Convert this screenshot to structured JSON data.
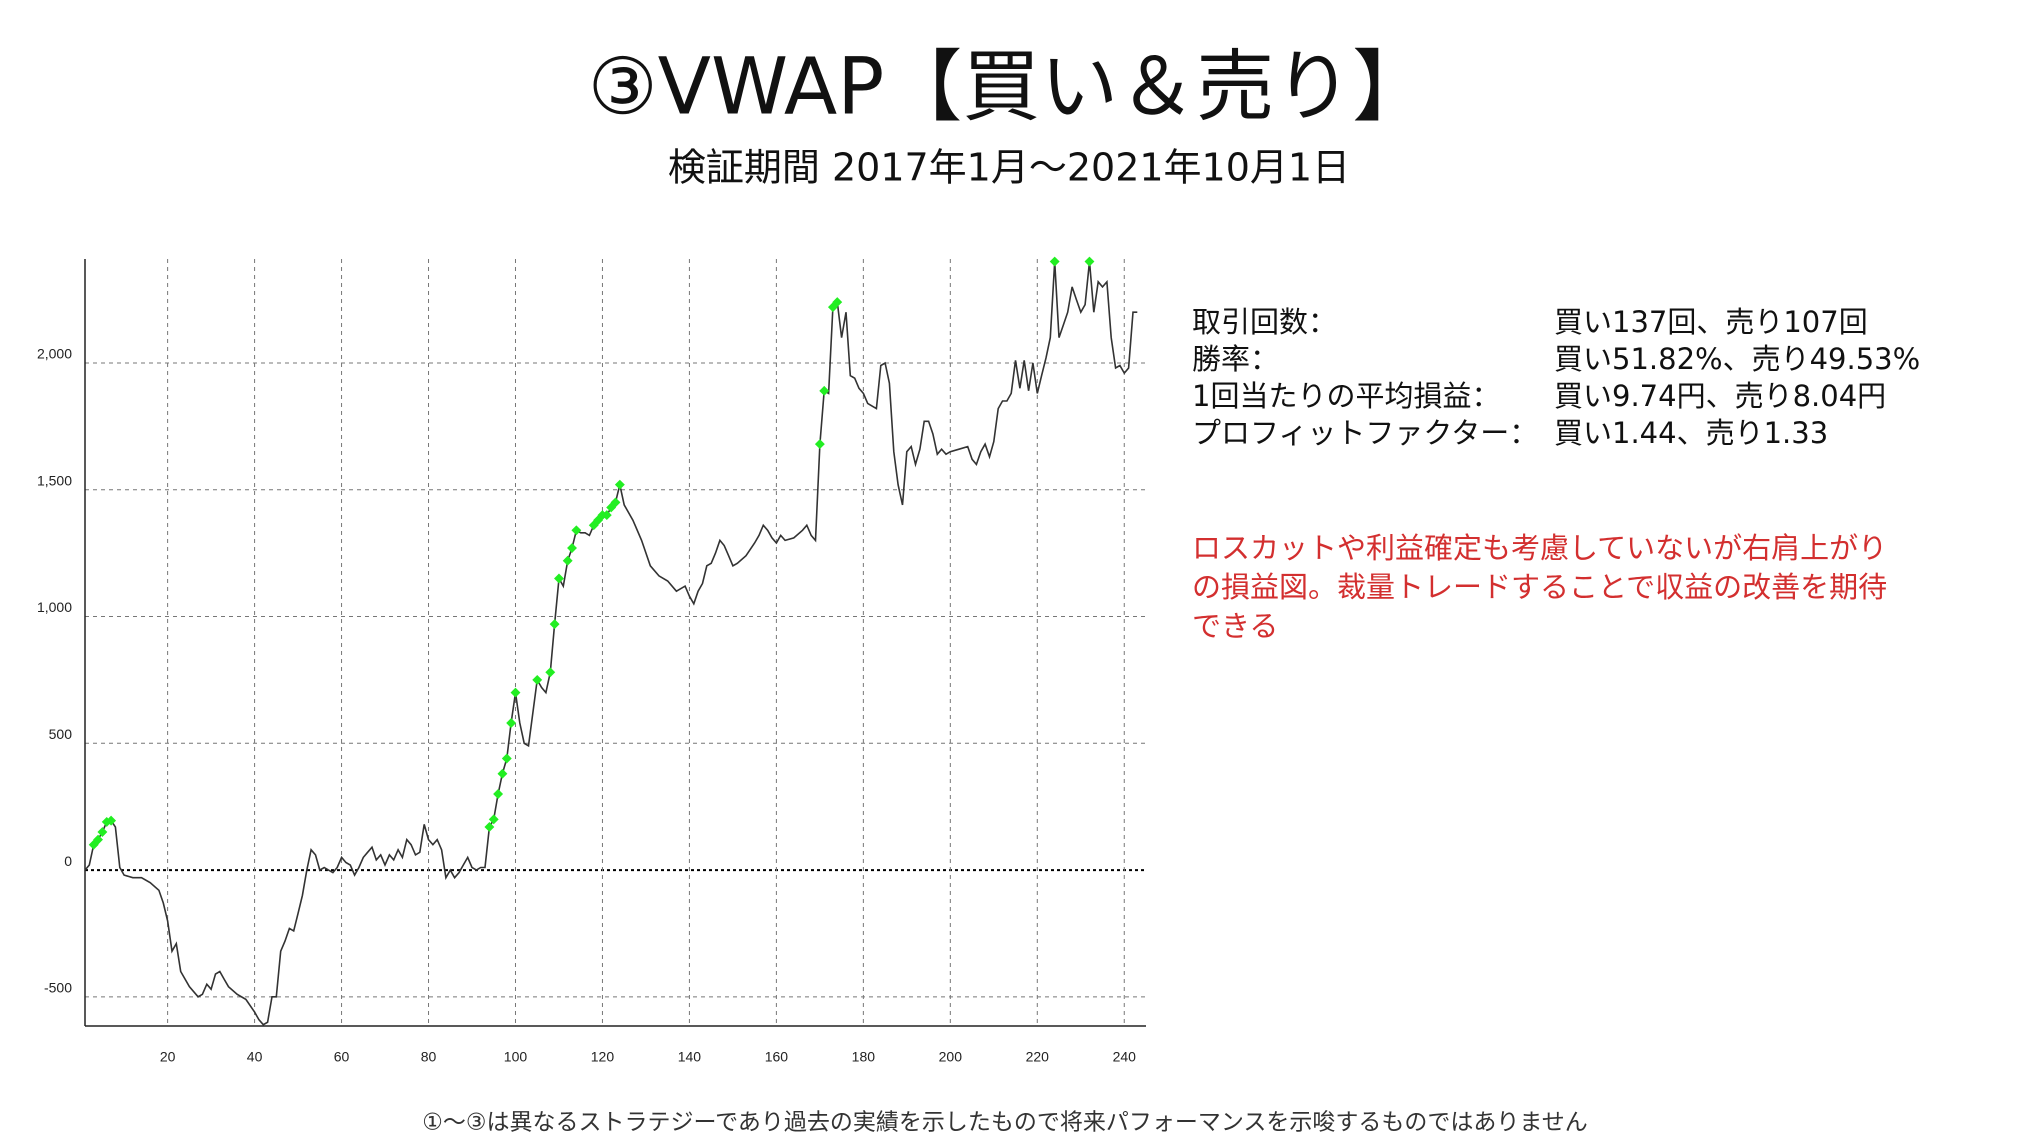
{
  "title": "③VWAP【買い＆売り】",
  "subtitle": "検証期間 2017年1月～2021年10月1日",
  "stats": [
    [
      "取引回数：",
      "買い137回、売り107回"
    ],
    [
      "勝率：",
      "買い51.82%、売り49.53%"
    ],
    [
      "1回当たりの平均損益：",
      "買い9.74円、売り8.04円"
    ],
    [
      "プロフィットファクター：",
      "買い1.44、売り1.33"
    ]
  ],
  "note": [
    "ロスカットや利益確定も考慮していないが右肩上がり",
    "の損益図。裁量トレードすることで収益の改善を期待",
    "できる"
  ],
  "footer": "①～③は異なるストラテジーであり過去の実績を示したもので将来パフォーマンスを示唆するものではありません",
  "chart_data": {
    "type": "line",
    "xlim": [
      1,
      245
    ],
    "ylim": [
      -615,
      2410
    ],
    "xticks": [
      20,
      40,
      60,
      80,
      100,
      120,
      140,
      160,
      180,
      200,
      220,
      240
    ],
    "yticks": [
      -500,
      0,
      500,
      {
        "value": 1000,
        "label": "1,000"
      },
      {
        "value": 1500,
        "label": "1,500"
      },
      {
        "value": 2000,
        "label": "2,000"
      }
    ],
    "grid": true,
    "series": [
      {
        "color": "#333333",
        "markers": false,
        "x": [
          1,
          2,
          3,
          4,
          5,
          6,
          7,
          8,
          9,
          10,
          12,
          14,
          16,
          18,
          19,
          20,
          21,
          22,
          23,
          25,
          27,
          28,
          29,
          30,
          31,
          32,
          33,
          34,
          36,
          38,
          40,
          41,
          42,
          43,
          44,
          45,
          46,
          47,
          48,
          49,
          50,
          51,
          52,
          53,
          54,
          55,
          56,
          57,
          58,
          59,
          60,
          61,
          62,
          63,
          64,
          65,
          66,
          67,
          68,
          69,
          70,
          71,
          72,
          73,
          74,
          75,
          76,
          77,
          78,
          79,
          80,
          81,
          82,
          83,
          84,
          85,
          86,
          87,
          88,
          89,
          90,
          91,
          92,
          93,
          94,
          95,
          96,
          97,
          98,
          99,
          100,
          101,
          102,
          103,
          105,
          106,
          107,
          108,
          109,
          110,
          111,
          112,
          113,
          114,
          115,
          116,
          117,
          118,
          119,
          120,
          121,
          122,
          123,
          124,
          125,
          127,
          129,
          131,
          133,
          135,
          137,
          139,
          140,
          141,
          142,
          143,
          144,
          145,
          146,
          147,
          148,
          149,
          150,
          151,
          153,
          155,
          156,
          157,
          158,
          159,
          160,
          161,
          162,
          164,
          166,
          167,
          168,
          169,
          170,
          171,
          172,
          173,
          174,
          175,
          176,
          177,
          178,
          179,
          180,
          181,
          182,
          183,
          184,
          185,
          186,
          187,
          188,
          189,
          190,
          191,
          192,
          193,
          194,
          195,
          196,
          197,
          198,
          199,
          200,
          202,
          204,
          205,
          206,
          207,
          208,
          209,
          210,
          211,
          212,
          213,
          214,
          215,
          216,
          217,
          218,
          219,
          220,
          221,
          222,
          223,
          224,
          225,
          226,
          227,
          228,
          229,
          230,
          231,
          232,
          233,
          234,
          235,
          236,
          237,
          238,
          239,
          240,
          241,
          242,
          243
        ],
        "values": [
          0,
          20,
          100,
          120,
          150,
          190,
          195,
          170,
          10,
          -20,
          -30,
          -30,
          -50,
          -80,
          -130,
          -200,
          -320,
          -290,
          -400,
          -460,
          -500,
          -490,
          -450,
          -470,
          -410,
          -400,
          -430,
          -460,
          -490,
          -510,
          -560,
          -590,
          -610,
          -600,
          -500,
          -500,
          -320,
          -280,
          -230,
          -240,
          -170,
          -100,
          0,
          80,
          60,
          0,
          10,
          0,
          -10,
          10,
          50,
          30,
          20,
          -20,
          10,
          50,
          70,
          90,
          40,
          60,
          20,
          60,
          40,
          80,
          50,
          120,
          100,
          60,
          70,
          180,
          120,
          100,
          120,
          80,
          -30,
          0,
          -30,
          -10,
          20,
          50,
          10,
          0,
          10,
          10,
          170,
          200,
          300,
          380,
          440,
          580,
          700,
          580,
          500,
          490,
          750,
          720,
          700,
          780,
          970,
          1150,
          1120,
          1220,
          1270,
          1340,
          1330,
          1330,
          1320,
          1360,
          1380,
          1400,
          1400,
          1430,
          1450,
          1520,
          1440,
          1380,
          1300,
          1200,
          1160,
          1140,
          1100,
          1120,
          1080,
          1050,
          1100,
          1130,
          1200,
          1210,
          1250,
          1300,
          1280,
          1240,
          1200,
          1210,
          1240,
          1290,
          1320,
          1360,
          1340,
          1310,
          1290,
          1320,
          1300,
          1310,
          1340,
          1360,
          1320,
          1300,
          1680,
          1890,
          1880,
          2220,
          2240,
          2100,
          2200,
          1950,
          1940,
          1900,
          1880,
          1840,
          1830,
          1820,
          1990,
          2000,
          1920,
          1650,
          1520,
          1440,
          1650,
          1670,
          1600,
          1660,
          1770,
          1770,
          1720,
          1640,
          1660,
          1640,
          1650,
          1660,
          1670,
          1620,
          1600,
          1650,
          1680,
          1630,
          1690,
          1820,
          1850,
          1850,
          1880,
          2010,
          1900,
          2010,
          1890,
          2000,
          1880,
          1950,
          2020,
          2100,
          2400,
          2100,
          2150,
          2200,
          2300,
          2250,
          2200,
          2230,
          2400,
          2200,
          2320,
          2300,
          2320,
          2100,
          1980,
          1990,
          1960,
          1980,
          2200,
          2200
        ]
      },
      {
        "color": "#22ee22",
        "markers": true,
        "x": [
          3,
          4,
          5,
          6,
          7,
          94,
          95,
          96,
          97,
          98,
          99,
          100,
          105,
          108,
          109,
          110,
          112,
          113,
          114,
          118,
          119,
          120,
          121,
          122,
          123,
          124,
          170,
          171,
          173,
          174,
          224,
          232
        ],
        "values": [
          100,
          120,
          150,
          190,
          195,
          170,
          200,
          300,
          380,
          440,
          580,
          700,
          750,
          780,
          970,
          1150,
          1220,
          1270,
          1340,
          1360,
          1380,
          1400,
          1400,
          1430,
          1450,
          1520,
          1680,
          1890,
          2220,
          2240,
          2400,
          2400
        ]
      }
    ]
  }
}
